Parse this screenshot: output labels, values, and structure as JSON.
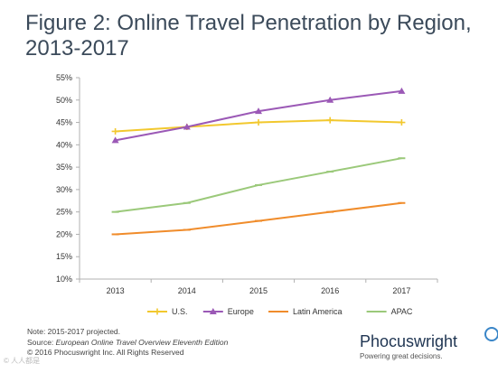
{
  "title_lines": [
    "Figure 2: Online Travel Penetration by Region,",
    "2013-2017"
  ],
  "footer": {
    "note": "Note: 2015-2017 projected.",
    "source_prefix": "Source: ",
    "source_title": "European Online Travel Overview Eleventh Edition",
    "copyright": "© 2016 Phocuswright Inc. All Rights Reserved"
  },
  "logo": {
    "name": "Phocuswright",
    "tagline": "Powering great decisions."
  },
  "watermark": "© 人人都是",
  "chart_data": {
    "type": "line",
    "title": "",
    "xlabel": "",
    "ylabel": "",
    "x": [
      "2013",
      "2014",
      "2015",
      "2016",
      "2017"
    ],
    "ylim": [
      10,
      55
    ],
    "yticks": [
      "10%",
      "15%",
      "20%",
      "25%",
      "30%",
      "35%",
      "40%",
      "45%",
      "50%",
      "55%"
    ],
    "grid": false,
    "legend_position": "bottom",
    "series": [
      {
        "name": "U.S.",
        "color": "#f2c82e",
        "marker": "diamond",
        "values": [
          43,
          44,
          45,
          45.5,
          45
        ]
      },
      {
        "name": "Europe",
        "color": "#9b59b6",
        "marker": "triangle",
        "values": [
          41,
          44,
          47.5,
          50,
          52
        ]
      },
      {
        "name": "Latin America",
        "color": "#f08c2b",
        "marker": "dash",
        "values": [
          20,
          21,
          23,
          25,
          27
        ]
      },
      {
        "name": "APAC",
        "color": "#9bc97a",
        "marker": "dash",
        "values": [
          25,
          27,
          31,
          34,
          37
        ]
      }
    ]
  }
}
